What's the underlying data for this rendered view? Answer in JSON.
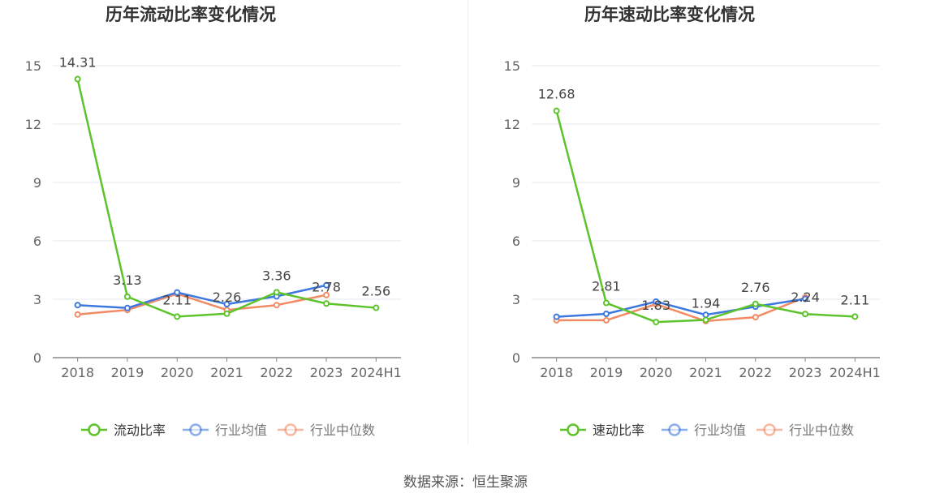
{
  "source": "数据来源：恒生聚源",
  "chart_data": [
    {
      "type": "line",
      "title": "历年流动比率变化情况",
      "categories": [
        "2018",
        "2019",
        "2020",
        "2021",
        "2022",
        "2023",
        "2024H1"
      ],
      "ylim": [
        0,
        15
      ],
      "yticks": [
        0,
        3,
        6,
        9,
        12,
        15
      ],
      "grid": true,
      "legend_position": "bottom",
      "series": [
        {
          "name": "流动比率",
          "color": "#5cc42a",
          "labeled": true,
          "values": [
            14.31,
            3.13,
            2.11,
            2.26,
            3.36,
            2.78,
            2.56
          ]
        },
        {
          "name": "行业均值",
          "color": "#3d78e0",
          "labeled": false,
          "values": [
            2.7,
            2.55,
            3.35,
            2.75,
            3.15,
            3.72,
            null
          ]
        },
        {
          "name": "行业中位数",
          "color": "#f28a64",
          "labeled": false,
          "values": [
            2.22,
            2.45,
            3.28,
            2.45,
            2.7,
            3.22,
            null
          ]
        }
      ]
    },
    {
      "type": "line",
      "title": "历年速动比率变化情况",
      "categories": [
        "2018",
        "2019",
        "2020",
        "2021",
        "2022",
        "2023",
        "2024H1"
      ],
      "ylim": [
        0,
        15
      ],
      "yticks": [
        0,
        3,
        6,
        9,
        12,
        15
      ],
      "grid": true,
      "legend_position": "bottom",
      "series": [
        {
          "name": "速动比率",
          "color": "#5cc42a",
          "labeled": true,
          "values": [
            12.68,
            2.81,
            1.83,
            1.94,
            2.76,
            2.24,
            2.11
          ]
        },
        {
          "name": "行业均值",
          "color": "#3d78e0",
          "labeled": false,
          "values": [
            2.1,
            2.25,
            2.88,
            2.2,
            2.62,
            3.02,
            null
          ]
        },
        {
          "name": "行业中位数",
          "color": "#f28a64",
          "labeled": false,
          "values": [
            1.92,
            1.92,
            2.75,
            1.88,
            2.08,
            3.1,
            null
          ]
        }
      ]
    }
  ]
}
